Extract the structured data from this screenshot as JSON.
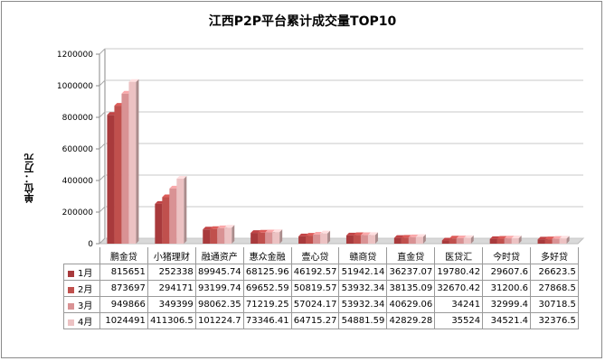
{
  "chart_data": {
    "type": "bar",
    "title": "江西P2P平台累计成交量TOP10",
    "ylabel": "单位：万元",
    "ylim": [
      0,
      1200000
    ],
    "yticks": [
      "0",
      "200000",
      "400000",
      "600000",
      "800000",
      "1000000",
      "1200000"
    ],
    "categories": [
      "鹏金贷",
      "小猪理财",
      "融通资产",
      "惠众金融",
      "壹心贷",
      "赣商贷",
      "直金贷",
      "医贷汇",
      "今时贷",
      "多好贷"
    ],
    "series": [
      {
        "name": "1月",
        "color": "#a83a3c",
        "values": [
          815651,
          252338,
          89945.74,
          68125.96,
          46192.57,
          51942.14,
          36237.07,
          19780.42,
          29607.6,
          26623.5
        ]
      },
      {
        "name": "2月",
        "color": "#c0504d",
        "values": [
          873697,
          294171,
          93199.74,
          69652.59,
          50819.57,
          53932.34,
          38135.09,
          32670.42,
          31200.6,
          27868.5
        ]
      },
      {
        "name": "3月",
        "color": "#d99294",
        "values": [
          949866,
          349399,
          98062.35,
          71219.25,
          57024.17,
          53932.34,
          40629.06,
          34241,
          32999.4,
          30718.5
        ]
      },
      {
        "name": "4月",
        "color": "#ecc2c3",
        "values": [
          1024491,
          411306.5,
          101224.7,
          73346.41,
          64715.27,
          54881.59,
          42829.28,
          35524,
          34521.4,
          32376.5
        ]
      }
    ],
    "table_values": [
      [
        "815651",
        "252338",
        "89945.74",
        "68125.96",
        "46192.57",
        "51942.14",
        "36237.07",
        "19780.42",
        "29607.6",
        "26623.5"
      ],
      [
        "873697",
        "294171",
        "93199.74",
        "69652.59",
        "50819.57",
        "53932.34",
        "38135.09",
        "32670.42",
        "31200.6",
        "27868.5"
      ],
      [
        "949866",
        "349399",
        "98062.35",
        "71219.25",
        "57024.17",
        "53932.34",
        "40629.06",
        "34241",
        "32999.4",
        "30718.5"
      ],
      [
        "1024491",
        "411306.5",
        "101224.7",
        "73346.41",
        "64715.27",
        "54881.59",
        "42829.28",
        "35524",
        "34521.4",
        "32376.5"
      ]
    ],
    "grid": true,
    "legend": "data-table"
  }
}
